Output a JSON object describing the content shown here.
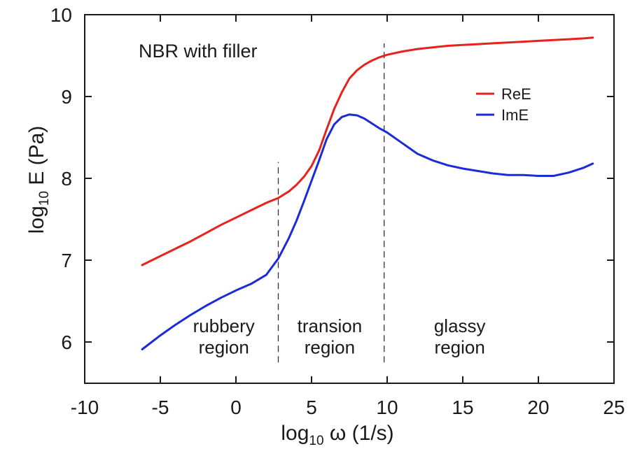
{
  "chart_data": {
    "type": "line",
    "title": "NBR with filler",
    "xlabel": {
      "base": "log",
      "subscript": "10",
      "rest": " ω  (1/s)"
    },
    "ylabel": {
      "base": "log",
      "subscript": "10",
      "rest": " E  (Pa)"
    },
    "xlim": [
      -10,
      25
    ],
    "ylim": [
      5.45,
      10
    ],
    "xticks": [
      -10,
      -5,
      0,
      5,
      10,
      15,
      20,
      25
    ],
    "yticks": [
      6,
      7,
      8,
      9,
      10
    ],
    "legend_position": "top-right",
    "series": [
      {
        "name": "ReE",
        "color": "#e8211c",
        "x": [
          -6.2,
          -5,
          -4,
          -3,
          -2,
          -1,
          0,
          1,
          2,
          2.8,
          3.5,
          4,
          4.5,
          5,
          5.5,
          6,
          6.5,
          7,
          7.5,
          8,
          8.5,
          9,
          9.5,
          10,
          11,
          12,
          13,
          14,
          15,
          16,
          17,
          18,
          19,
          20,
          21,
          22,
          23,
          23.6
        ],
        "y": [
          6.94,
          7.05,
          7.14,
          7.23,
          7.33,
          7.43,
          7.52,
          7.61,
          7.7,
          7.76,
          7.84,
          7.92,
          8.02,
          8.15,
          8.34,
          8.6,
          8.85,
          9.05,
          9.22,
          9.32,
          9.39,
          9.44,
          9.48,
          9.51,
          9.55,
          9.58,
          9.6,
          9.62,
          9.63,
          9.64,
          9.65,
          9.66,
          9.67,
          9.68,
          9.69,
          9.7,
          9.71,
          9.72
        ]
      },
      {
        "name": "ImE",
        "color": "#1c2bd8",
        "x": [
          -6.2,
          -5,
          -4,
          -3,
          -2,
          -1,
          0,
          1,
          2,
          2.8,
          3.5,
          4,
          4.5,
          5,
          5.5,
          6,
          6.5,
          7,
          7.5,
          8,
          8.5,
          9,
          9.5,
          10,
          11,
          12,
          13,
          14,
          15,
          16,
          17,
          18,
          19,
          20,
          21,
          22,
          23,
          23.6
        ],
        "y": [
          5.91,
          6.08,
          6.21,
          6.33,
          6.44,
          6.54,
          6.63,
          6.71,
          6.82,
          7.02,
          7.27,
          7.48,
          7.72,
          7.97,
          8.22,
          8.48,
          8.66,
          8.75,
          8.78,
          8.77,
          8.73,
          8.67,
          8.61,
          8.56,
          8.43,
          8.3,
          8.22,
          8.16,
          8.12,
          8.09,
          8.06,
          8.04,
          8.04,
          8.03,
          8.03,
          8.07,
          8.13,
          8.18
        ]
      }
    ],
    "divider_lines": [
      {
        "x": 2.8,
        "y_range": [
          5.75,
          8.2
        ]
      },
      {
        "x": 9.8,
        "y_range": [
          5.75,
          9.65
        ]
      }
    ],
    "region_labels": [
      {
        "lines": [
          "rubbery",
          "region"
        ],
        "x": -0.8,
        "y": [
          6.12,
          5.86
        ]
      },
      {
        "lines": [
          "transion",
          "region"
        ],
        "x": 6.2,
        "y": [
          6.12,
          5.86
        ]
      },
      {
        "lines": [
          "glassy",
          "region"
        ],
        "x": 14.8,
        "y": [
          6.12,
          5.86
        ]
      }
    ],
    "annotations": []
  }
}
